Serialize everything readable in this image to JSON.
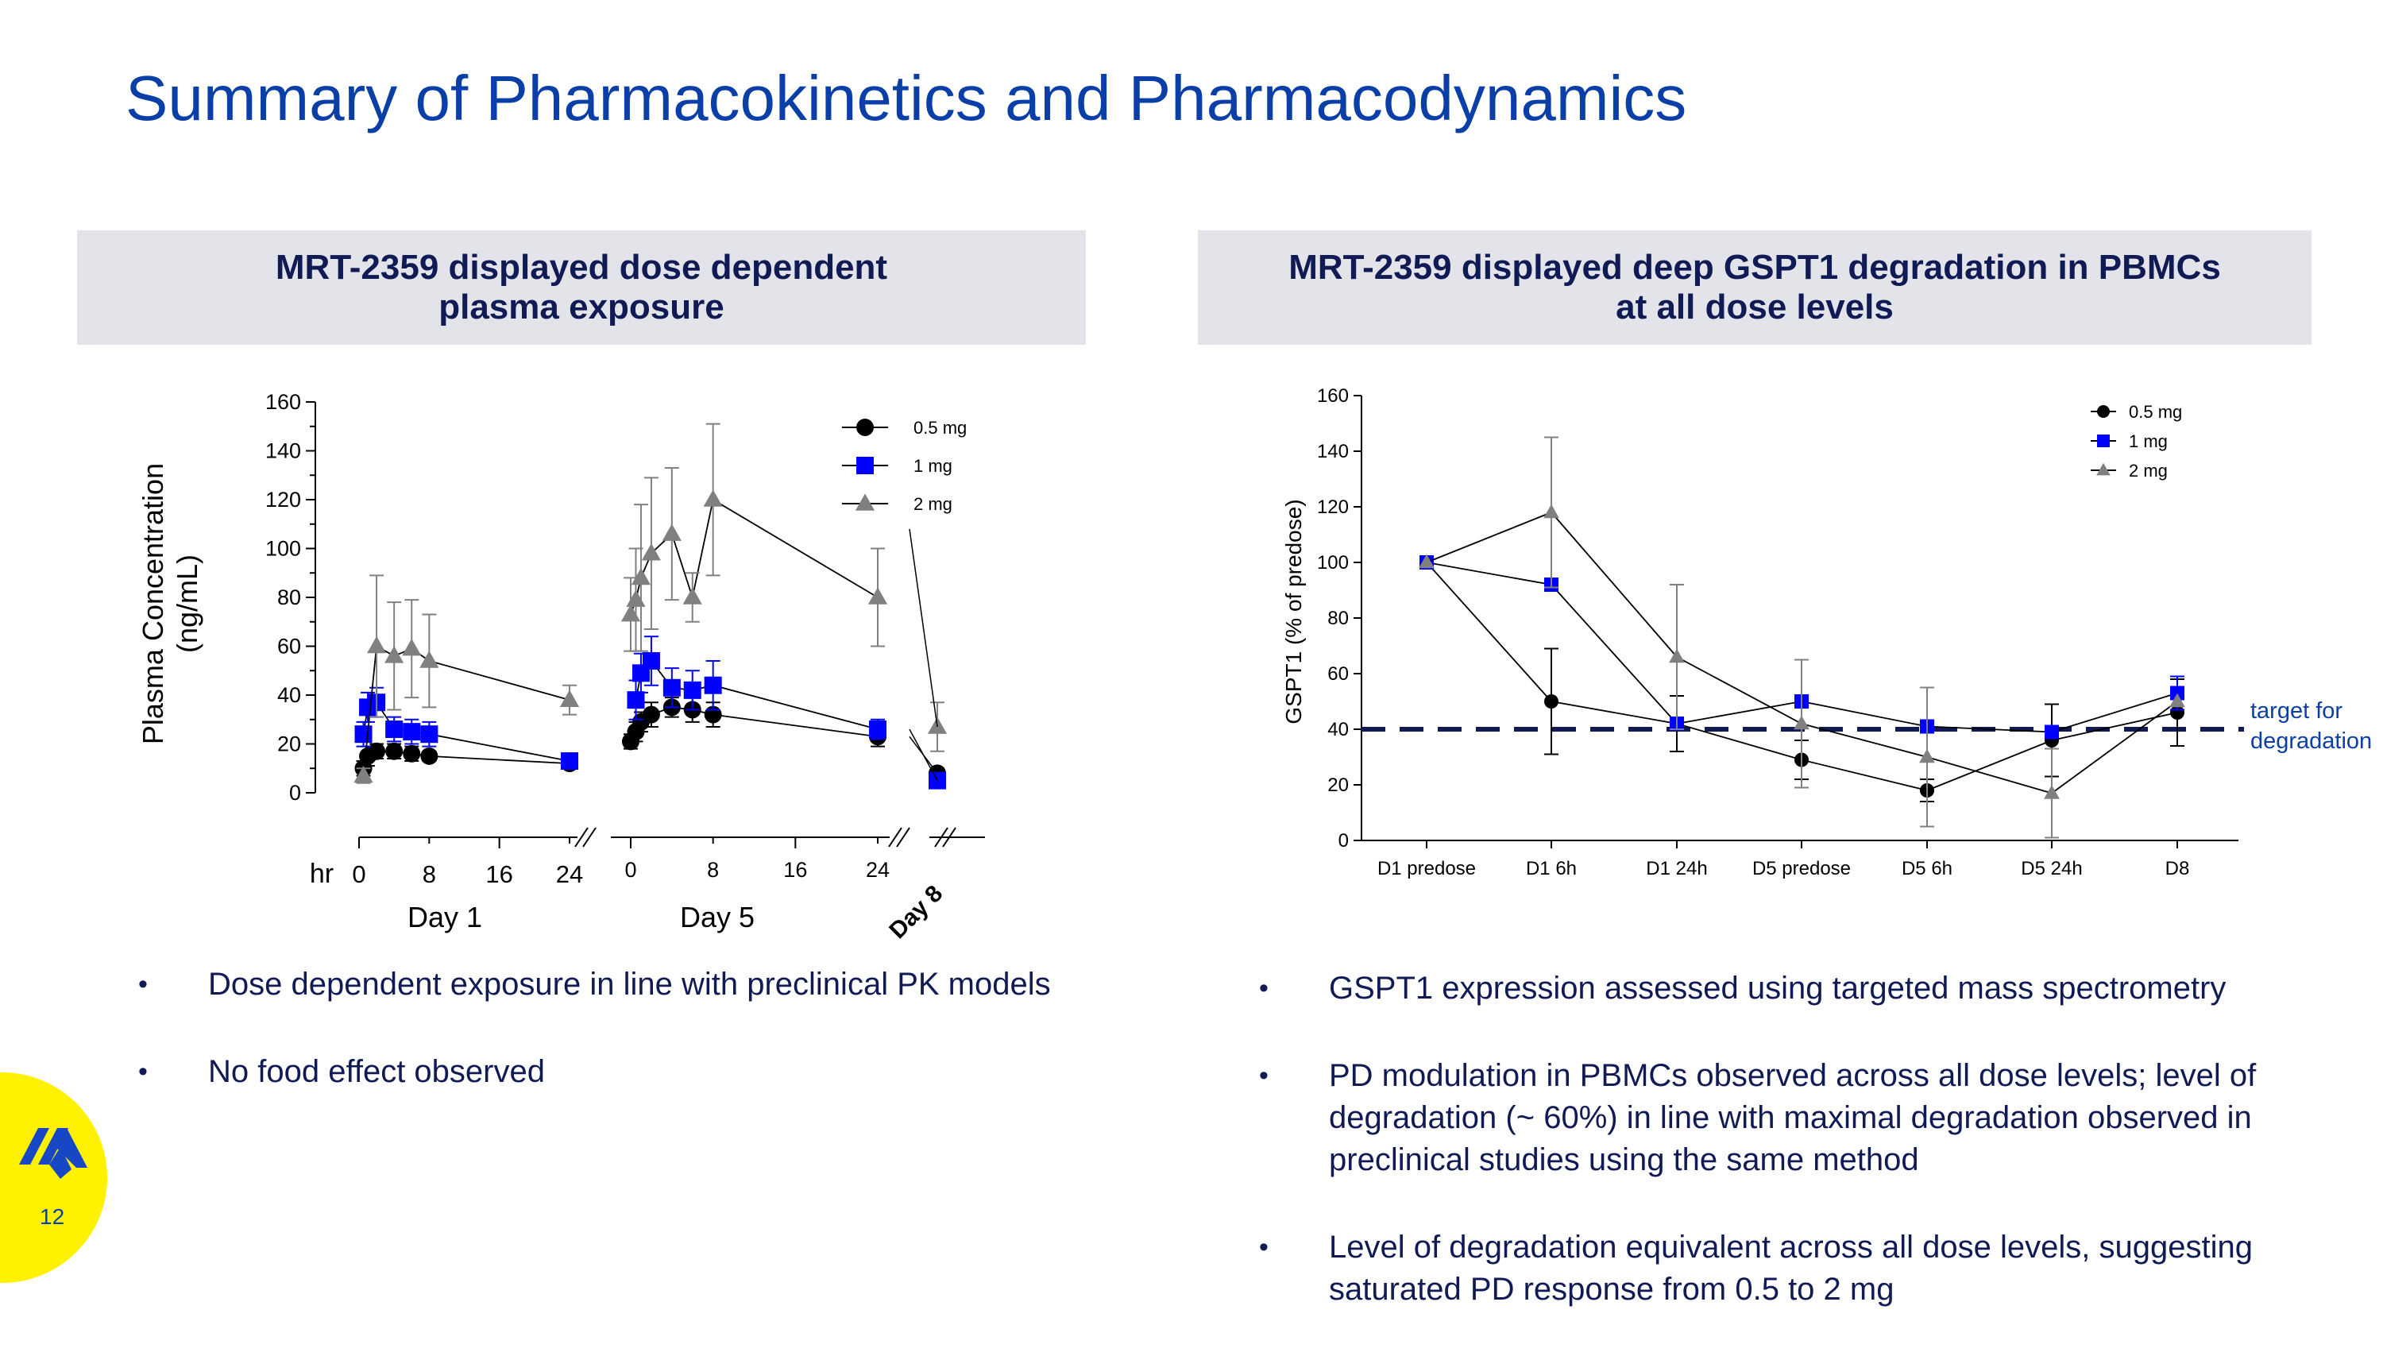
{
  "slide": {
    "title": "Summary of Pharmacokinetics and Pharmacodynamics",
    "page_number": "12",
    "accent": "#0a3fa8",
    "text_color": "#101a55"
  },
  "left_panel": {
    "header_lines": [
      "MRT-2359 displayed dose dependent",
      "plasma exposure"
    ],
    "bullets": [
      "Dose dependent exposure in line with preclinical PK models",
      "No food effect observed"
    ]
  },
  "right_panel": {
    "header_lines": [
      "MRT-2359 displayed deep GSPT1 degradation in PBMCs",
      "at all dose levels"
    ],
    "bullets": [
      "GSPT1 expression assessed using targeted mass spectrometry",
      "PD modulation in PBMCs observed across all dose levels; level of degradation (~ 60%) in line with maximal degradation observed in preclinical studies using the same method",
      "Level of degradation equivalent across all dose levels, suggesting saturated PD response from 0.5 to 2 mg"
    ]
  },
  "chart_data": [
    {
      "type": "line",
      "ylabel_lines": [
        "Plasma Concentration",
        "(ng/mL)"
      ],
      "ylim": [
        0,
        160
      ],
      "yticks": [
        "0",
        "20",
        "40",
        "60",
        "80",
        "100",
        "120",
        "140",
        "160"
      ],
      "x_unit_label": "hr",
      "segments": [
        {
          "name": "Day 1",
          "ticks": [
            "0",
            "8",
            "16",
            "24"
          ],
          "xlim": [
            0,
            24
          ]
        },
        {
          "name": "Day 5",
          "ticks": [
            "0",
            "8",
            "16",
            "24"
          ],
          "xlim": [
            0,
            24
          ]
        },
        {
          "name": "Day 8",
          "ticks": [],
          "xlim": [
            0,
            1
          ]
        }
      ],
      "series": [
        {
          "name": "0.5 mg",
          "color": "#000000",
          "marker": "circle",
          "day1": [
            [
              0.5,
              10,
              3
            ],
            [
              1,
              15,
              4
            ],
            [
              2,
              17,
              3
            ],
            [
              4,
              17,
              3
            ],
            [
              6,
              16,
              3
            ],
            [
              8,
              15,
              2
            ],
            [
              24,
              12,
              2
            ]
          ],
          "day5": [
            [
              0,
              21,
              3
            ],
            [
              0.5,
              25,
              4
            ],
            [
              1,
              29,
              4
            ],
            [
              2,
              32,
              5
            ],
            [
              4,
              35,
              4
            ],
            [
              6,
              34,
              5
            ],
            [
              8,
              32,
              5
            ],
            [
              24,
              23,
              4
            ]
          ],
          "day8": [
            [
              0,
              8,
              2
            ]
          ]
        },
        {
          "name": "1 mg",
          "color": "#0000ff",
          "marker": "square",
          "day1": [
            [
              0.5,
              24,
              5
            ],
            [
              1,
              35,
              6
            ],
            [
              2,
              37,
              6
            ],
            [
              4,
              26,
              5
            ],
            [
              6,
              25,
              5
            ],
            [
              8,
              24,
              5
            ],
            [
              24,
              13,
              2
            ]
          ],
          "day5": [
            [
              0.5,
              38,
              8
            ],
            [
              1,
              49,
              8
            ],
            [
              2,
              54,
              10
            ],
            [
              4,
              43,
              8
            ],
            [
              6,
              42,
              8
            ],
            [
              8,
              44,
              10
            ],
            [
              24,
              26,
              4
            ]
          ],
          "day8": [
            [
              0,
              5,
              1
            ]
          ]
        },
        {
          "name": "2 mg",
          "color": "#808080",
          "marker": "triangle",
          "day1": [
            [
              0.5,
              7,
              3
            ],
            [
              2,
              60,
              29
            ],
            [
              4,
              56,
              22
            ],
            [
              6,
              59,
              20
            ],
            [
              8,
              54,
              19
            ],
            [
              24,
              38,
              6
            ]
          ],
          "day5": [
            [
              0,
              73,
              15
            ],
            [
              0.5,
              79,
              21
            ],
            [
              1,
              88,
              30
            ],
            [
              2,
              98,
              31
            ],
            [
              4,
              106,
              27
            ],
            [
              6,
              80,
              10
            ],
            [
              8,
              120,
              31
            ],
            [
              24,
              80,
              20
            ]
          ],
          "day8": [
            [
              0,
              27,
              10
            ]
          ]
        }
      ]
    },
    {
      "type": "line",
      "ylabel": "GSPT1 (% of predose)",
      "ylim": [
        0,
        160
      ],
      "yticks": [
        "0",
        "20",
        "40",
        "60",
        "80",
        "100",
        "120",
        "140",
        "160"
      ],
      "categories": [
        "D1 predose",
        "D1 6h",
        "D1 24h",
        "D5 predose",
        "D5 6h",
        "D5 24h",
        "D8"
      ],
      "target_line": {
        "value": 40,
        "label_lines": [
          "target for",
          "degradation"
        ],
        "color": "#101a55"
      },
      "series": [
        {
          "name": "0.5 mg",
          "color": "#000000",
          "marker": "circle",
          "values": [
            100,
            50,
            42,
            29,
            18,
            36,
            46
          ],
          "errors": [
            0,
            19,
            10,
            7,
            4,
            13,
            12
          ]
        },
        {
          "name": "1 mg",
          "color": "#0000ff",
          "marker": "square",
          "values": [
            100,
            92,
            42,
            50,
            41,
            39,
            53
          ],
          "errors": [
            0,
            0,
            0,
            0,
            0,
            0,
            6
          ]
        },
        {
          "name": "2 mg",
          "color": "#808080",
          "marker": "triangle",
          "values": [
            100,
            118,
            66,
            42,
            30,
            17,
            50
          ],
          "errors": [
            0,
            27,
            26,
            23,
            25,
            16,
            0
          ]
        }
      ]
    }
  ]
}
